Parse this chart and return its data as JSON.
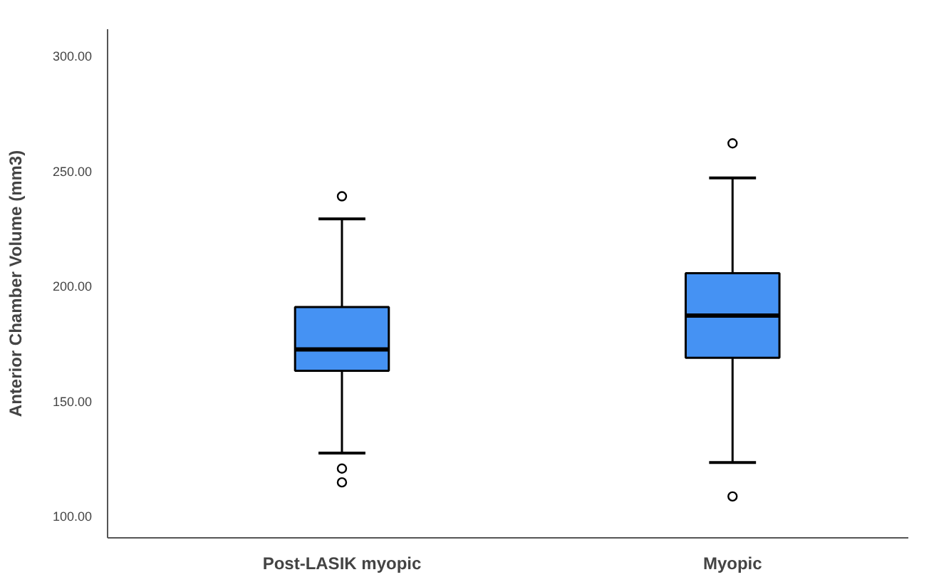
{
  "chart_data": {
    "type": "box",
    "ylabel": "Anterior Chamber Volume (mm3)",
    "categories": [
      "Post-LASIK myopic",
      "Myopic"
    ],
    "color": "#4592f3",
    "boxes": [
      {
        "low": 127.3,
        "q1": 163.1,
        "median": 172.4,
        "q3": 190.8,
        "high": 229.1,
        "outliers": [
          238.9,
          120.6,
          114.6
        ]
      },
      {
        "low": 123.2,
        "q1": 168.7,
        "median": 187.1,
        "q3": 205.5,
        "high": 246.9,
        "outliers": [
          261.9,
          108.5
        ]
      }
    ],
    "ylim": [
      90.5,
      311.5
    ],
    "yticks": [
      {
        "value": 100,
        "label": "100.00"
      },
      {
        "value": 150,
        "label": "150.00"
      },
      {
        "value": 200,
        "label": "200.00"
      },
      {
        "value": 250,
        "label": "250.00"
      },
      {
        "value": 300,
        "label": "300.00"
      }
    ],
    "grid": false
  }
}
